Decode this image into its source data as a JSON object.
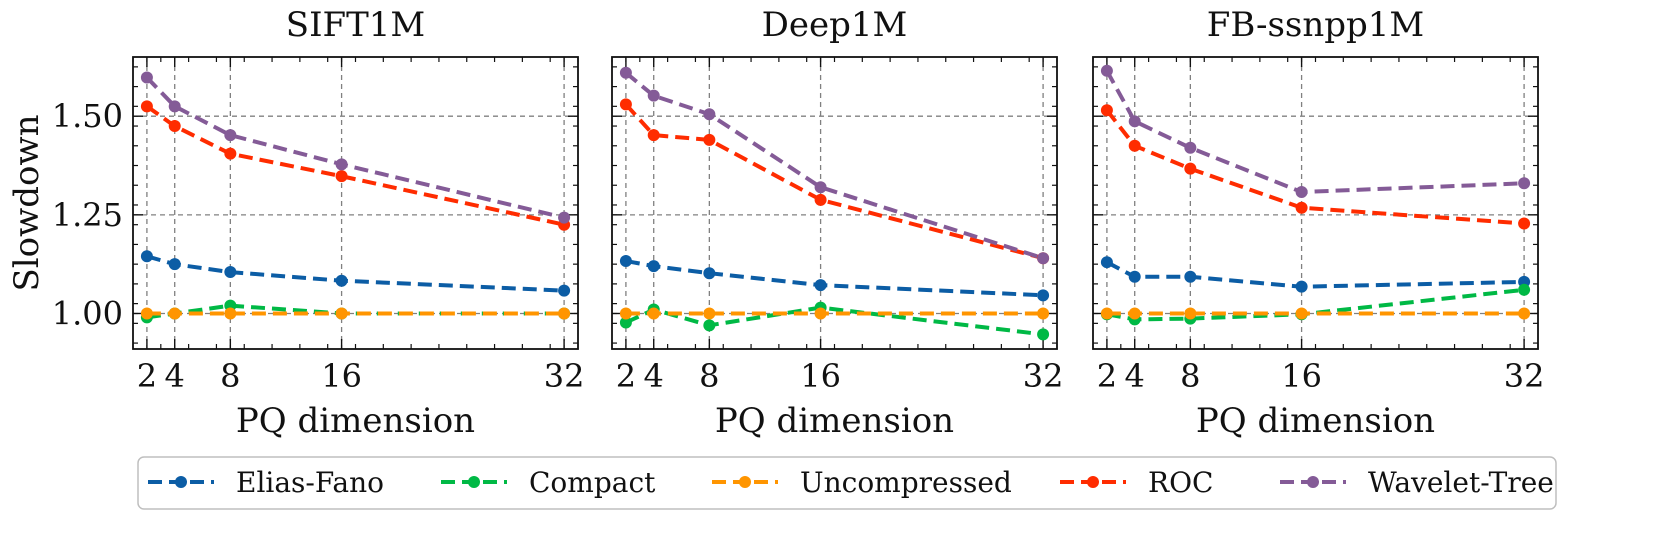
{
  "figure": {
    "shared_ylabel": "Slowdown",
    "legend": {
      "placement": "bottom",
      "entries": [
        {
          "name": "Elias-Fano",
          "color": "#0C5DA5"
        },
        {
          "name": "Compact",
          "color": "#00B945"
        },
        {
          "name": "Uncompressed",
          "color": "#FF9500"
        },
        {
          "name": "ROC",
          "color": "#FF2C00"
        },
        {
          "name": "Wavelet-Tree",
          "color": "#845B97"
        }
      ]
    }
  },
  "chart_data": [
    {
      "type": "line",
      "title": "SIFT1M",
      "xlabel": "PQ dimension",
      "ylabel": "Slowdown",
      "xlim": [
        1,
        33
      ],
      "ylim": [
        0.91,
        1.65
      ],
      "xticks": [
        2,
        4,
        8,
        16,
        32
      ],
      "yticks": [
        1.0,
        1.25,
        1.5
      ],
      "ytick_labels": [
        "1.00",
        "1.25",
        "1.50"
      ],
      "grid": true,
      "x": [
        2,
        4,
        8,
        16,
        32
      ],
      "series": [
        {
          "name": "Elias-Fano",
          "color": "#0C5DA5",
          "values": [
            1.145,
            1.125,
            1.105,
            1.083,
            1.058
          ]
        },
        {
          "name": "Compact",
          "color": "#00B945",
          "values": [
            0.99,
            1.0,
            1.02,
            1.0,
            1.0
          ]
        },
        {
          "name": "Uncompressed",
          "color": "#FF9500",
          "values": [
            1.0,
            1.0,
            1.0,
            1.0,
            1.0
          ]
        },
        {
          "name": "ROC",
          "color": "#FF2C00",
          "values": [
            1.525,
            1.475,
            1.405,
            1.348,
            1.225
          ]
        },
        {
          "name": "Wavelet-Tree",
          "color": "#845B97",
          "values": [
            1.598,
            1.525,
            1.452,
            1.378,
            1.243
          ]
        }
      ]
    },
    {
      "type": "line",
      "title": "Deep1M",
      "xlabel": "PQ dimension",
      "ylabel": "",
      "xlim": [
        1,
        33
      ],
      "ylim": [
        0.91,
        1.65
      ],
      "xticks": [
        2,
        4,
        8,
        16,
        32
      ],
      "yticks": [
        1.0,
        1.25,
        1.5
      ],
      "ytick_labels": [
        "",
        "",
        ""
      ],
      "grid": true,
      "x": [
        2,
        4,
        8,
        16,
        32
      ],
      "series": [
        {
          "name": "Elias-Fano",
          "color": "#0C5DA5",
          "values": [
            1.133,
            1.12,
            1.102,
            1.072,
            1.046
          ]
        },
        {
          "name": "Compact",
          "color": "#00B945",
          "values": [
            0.977,
            1.01,
            0.97,
            1.015,
            0.947
          ]
        },
        {
          "name": "Uncompressed",
          "color": "#FF9500",
          "values": [
            1.0,
            1.0,
            1.0,
            1.0,
            1.0
          ]
        },
        {
          "name": "ROC",
          "color": "#FF2C00",
          "values": [
            1.53,
            1.452,
            1.44,
            1.288,
            1.14
          ]
        },
        {
          "name": "Wavelet-Tree",
          "color": "#845B97",
          "values": [
            1.61,
            1.552,
            1.505,
            1.32,
            1.14
          ]
        }
      ]
    },
    {
      "type": "line",
      "title": "FB-ssnpp1M",
      "xlabel": "PQ dimension",
      "ylabel": "",
      "xlim": [
        1,
        33
      ],
      "ylim": [
        0.91,
        1.65
      ],
      "xticks": [
        2,
        4,
        8,
        16,
        32
      ],
      "yticks": [
        1.0,
        1.25,
        1.5
      ],
      "ytick_labels": [
        "",
        "",
        ""
      ],
      "grid": true,
      "x": [
        2,
        4,
        8,
        16,
        32
      ],
      "series": [
        {
          "name": "Elias-Fano",
          "color": "#0C5DA5",
          "values": [
            1.13,
            1.093,
            1.093,
            1.068,
            1.08
          ]
        },
        {
          "name": "Compact",
          "color": "#00B945",
          "values": [
            0.998,
            0.985,
            0.987,
            0.998,
            1.06
          ]
        },
        {
          "name": "Uncompressed",
          "color": "#FF9500",
          "values": [
            1.0,
            1.0,
            1.0,
            1.0,
            1.0
          ]
        },
        {
          "name": "ROC",
          "color": "#FF2C00",
          "values": [
            1.515,
            1.425,
            1.367,
            1.268,
            1.228
          ]
        },
        {
          "name": "Wavelet-Tree",
          "color": "#845B97",
          "values": [
            1.615,
            1.487,
            1.42,
            1.308,
            1.33
          ]
        }
      ]
    }
  ]
}
